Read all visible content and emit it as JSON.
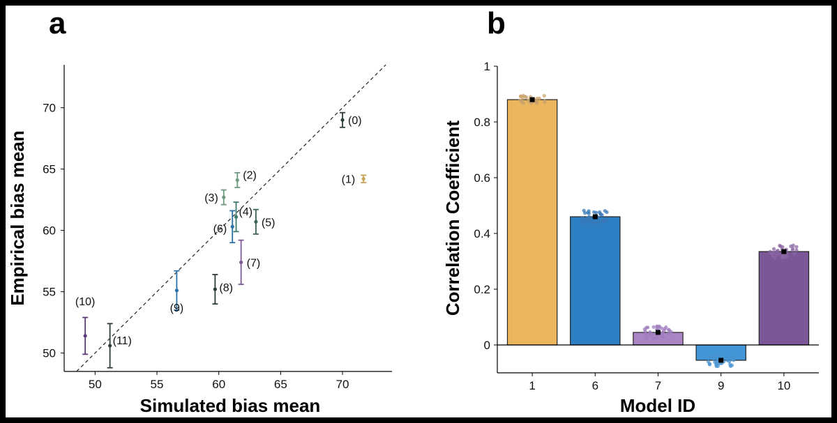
{
  "chart_data": [
    {
      "panel": "a",
      "type": "scatter",
      "xlabel": "Simulated bias mean",
      "ylabel": "Empirical bias mean",
      "xlim": [
        47.5,
        74
      ],
      "ylim": [
        48.5,
        73.5
      ],
      "xticks": [
        50,
        55,
        60,
        65,
        70
      ],
      "yticks": [
        50,
        55,
        60,
        65,
        70
      ],
      "diagonal": "y = x (dashed)",
      "points": [
        {
          "label": "(0)",
          "x": 70.0,
          "y": 69.0,
          "err": 0.6,
          "color": "#2d3d39"
        },
        {
          "label": "(1)",
          "x": 71.7,
          "y": 64.2,
          "err": 0.3,
          "color": "#c8a154"
        },
        {
          "label": "(2)",
          "x": 61.5,
          "y": 64.1,
          "err": 0.6,
          "color": "#6f9a80"
        },
        {
          "label": "(3)",
          "x": 60.4,
          "y": 62.7,
          "err": 0.6,
          "color": "#6f9a80"
        },
        {
          "label": "(4)",
          "x": 61.4,
          "y": 61.1,
          "err": 1.2,
          "color": "#3f7a6e"
        },
        {
          "label": "(5)",
          "x": 63.0,
          "y": 60.7,
          "err": 1.0,
          "color": "#3a6258"
        },
        {
          "label": "(6)",
          "x": 61.1,
          "y": 60.3,
          "err": 1.3,
          "color": "#2a70a6"
        },
        {
          "label": "(7)",
          "x": 61.8,
          "y": 57.4,
          "err": 1.8,
          "color": "#7d5a96"
        },
        {
          "label": "(8)",
          "x": 59.7,
          "y": 55.2,
          "err": 1.2,
          "color": "#2d3d39"
        },
        {
          "label": "(9)",
          "x": 56.6,
          "y": 55.1,
          "err": 1.6,
          "color": "#2a70a6"
        },
        {
          "label": "(10)",
          "x": 49.2,
          "y": 51.4,
          "err": 1.5,
          "color": "#5e3a78"
        },
        {
          "label": "(11)",
          "x": 51.2,
          "y": 50.6,
          "err": 1.8,
          "color": "#2d3d39"
        }
      ]
    },
    {
      "panel": "b",
      "type": "bar",
      "xlabel": "Model ID",
      "ylabel": "Correlation Coefficient",
      "categories": [
        "1",
        "6",
        "7",
        "9",
        "10"
      ],
      "values": [
        0.88,
        0.46,
        0.045,
        -0.055,
        0.335
      ],
      "colors": [
        "#ecb65e",
        "#2e7ec4",
        "#a985c4",
        "#4396d6",
        "#7b5797"
      ],
      "dot_colors": [
        "#c9a36c",
        "#3a78b5",
        "#9d7cbd",
        "#4a93d0",
        "#8a67a3"
      ],
      "ylim": [
        -0.1,
        1
      ],
      "yticks": [
        0,
        0.2,
        0.4,
        0.6,
        0.8,
        1
      ],
      "ytick_labels": [
        "0",
        "0.2",
        "0.4",
        "0.6",
        "0.8",
        "1"
      ]
    }
  ]
}
